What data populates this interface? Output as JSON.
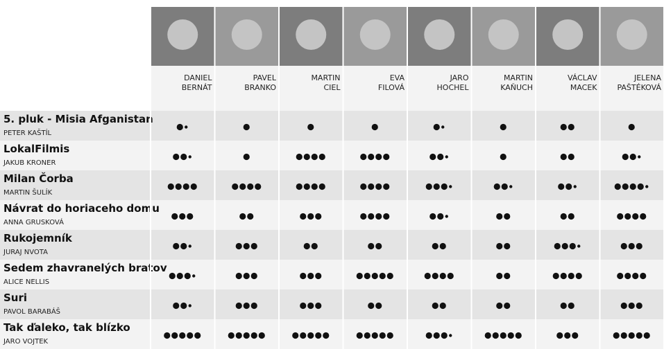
{
  "critics": [
    {
      "first": "DANIEL",
      "last": "BERNÁT"
    },
    {
      "first": "PAVEL",
      "last": "BRANKO"
    },
    {
      "first": "MARTIN",
      "last": "CIEL"
    },
    {
      "first": "EVA",
      "last": "FILOVÁ"
    },
    {
      "first": "JARO",
      "last": "HOCHEL"
    },
    {
      "first": "MARTIN",
      "last": "KAŇUCH"
    },
    {
      "first": "VÁCLAV",
      "last": "MACEK"
    },
    {
      "first": "JELENA",
      "last": "PAŠTÉKOVÁ"
    }
  ],
  "films": [
    {
      "title": "5. pluk - Misia Afganistan",
      "director": "PETER KAŠTÍL",
      "ratings": [
        1.5,
        1,
        1,
        1,
        1.5,
        1,
        2,
        1
      ]
    },
    {
      "title": "LokalFilmis",
      "director": "JAKUB KRONER",
      "ratings": [
        2.5,
        1,
        4,
        4,
        2.5,
        1,
        2,
        2.5
      ]
    },
    {
      "title": "Milan Čorba",
      "director": "MARTIN ŠULÍK",
      "ratings": [
        4,
        4,
        4,
        4,
        3.5,
        2.5,
        2.5,
        4.5
      ]
    },
    {
      "title": "Návrat do horiaceho domu",
      "director": "ANNA GRUSKOVÁ",
      "ratings": [
        3,
        2,
        3,
        4,
        2.5,
        2,
        2,
        4
      ]
    },
    {
      "title": "Rukojemník",
      "director": "JURAJ NVOTA",
      "ratings": [
        2.5,
        3,
        2,
        2,
        2,
        2,
        3.5,
        3
      ]
    },
    {
      "title": "Sedem zhavranelých bratov",
      "director": "ALICE NELLIS",
      "ratings": [
        3.5,
        3,
        3,
        5,
        4,
        2,
        4,
        4
      ]
    },
    {
      "title": "Suri",
      "director": "PAVOL BARABÁŠ",
      "ratings": [
        2.5,
        3,
        3,
        2,
        2,
        2,
        2,
        3
      ]
    },
    {
      "title": "Tak ďaleko, tak blízko",
      "director": "JARO VOJTEK",
      "ratings": [
        5,
        5,
        5,
        5,
        3.5,
        5,
        3,
        5
      ]
    }
  ]
}
